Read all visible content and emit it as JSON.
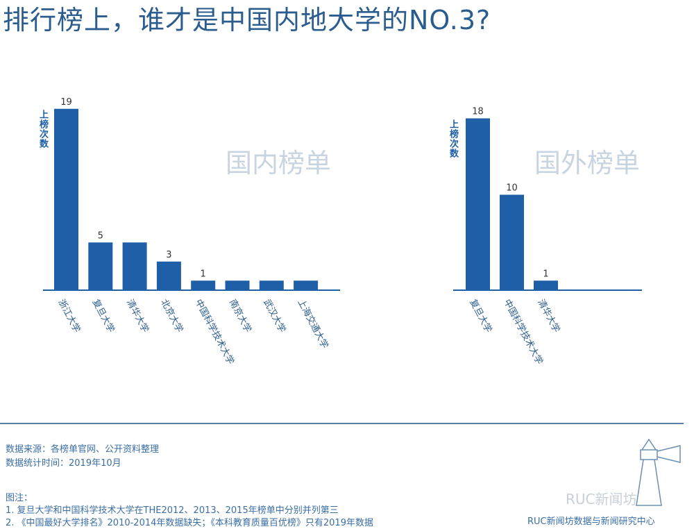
{
  "title": "排行榜上，谁才是中国内地大学的NO.3?",
  "chart_data": [
    {
      "type": "bar",
      "title": "国内榜单",
      "ylabel": "上榜次数",
      "categories": [
        "浙江大学",
        "复旦大学",
        "清华大学",
        "北京大学",
        "中国科学技术大学",
        "南京大学",
        "武汉大学",
        "上海交通大学"
      ],
      "values": [
        19,
        5,
        5,
        3,
        1,
        1,
        1,
        1
      ],
      "data_labels": [
        "19",
        "5",
        "",
        "3",
        "1",
        "",
        "",
        ""
      ],
      "color": "#1f5fa8"
    },
    {
      "type": "bar",
      "title": "国外榜单",
      "ylabel": "上榜次数",
      "categories": [
        "复旦大学",
        "中国科学技术大学",
        "清华大学"
      ],
      "values": [
        18,
        10,
        1
      ],
      "data_labels": [
        "18",
        "10",
        "1"
      ],
      "color": "#1f5fa8"
    }
  ],
  "footer": {
    "source": "数据来源：各榜单官网、公开资料整理",
    "time": "数据统计时间：2019年10月",
    "notes_title": "图注：",
    "note1": "1. 复旦大学和中国科学技术大学在THE2012、2013、2015年榜单中分别并列第三",
    "note2": "2. 《中国最好大学排名》2010-2014年数据缺失；《本科教育质量百优榜》只有2019年数据",
    "org": "RUC新闻坊数据与新闻研究中心",
    "watermark": "RUC新闻坊"
  }
}
